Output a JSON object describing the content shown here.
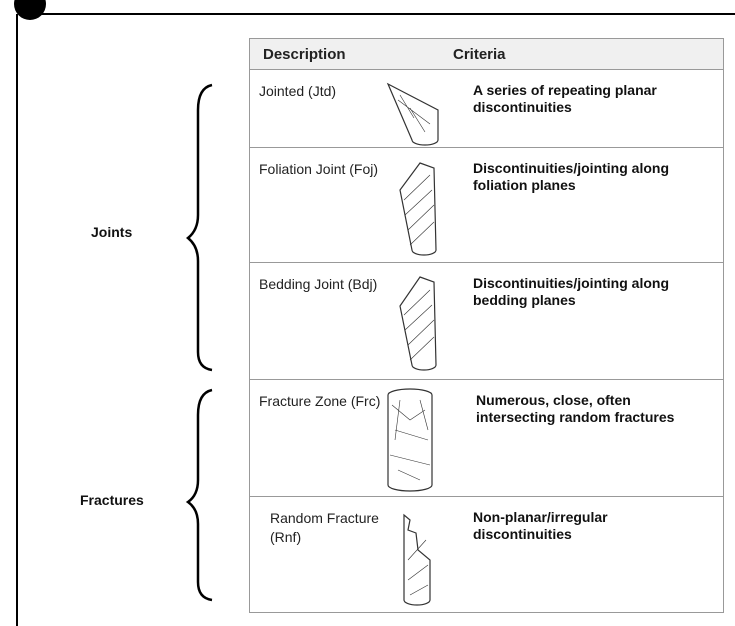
{
  "table": {
    "headers": [
      "Description",
      "Criteria"
    ],
    "rows": [
      {
        "description": "Jointed (Jtd)",
        "criteria": "A series of repeating planar discontinuities"
      },
      {
        "description": "Foliation Joint (Foj)",
        "criteria": "Discontinuities/jointing along foliation planes"
      },
      {
        "description": "Bedding Joint (Bdj)",
        "criteria": "Discontinuities/jointing along bedding planes"
      },
      {
        "description": "Fracture Zone (Frc)",
        "criteria": "Numerous, close, often intersecting random fractures"
      },
      {
        "description": "Random Fracture (Rnf)",
        "criteria": "Non-planar/irregular discontinuities"
      }
    ]
  },
  "groups": [
    {
      "label": "Joints"
    },
    {
      "label": "Fractures"
    }
  ]
}
